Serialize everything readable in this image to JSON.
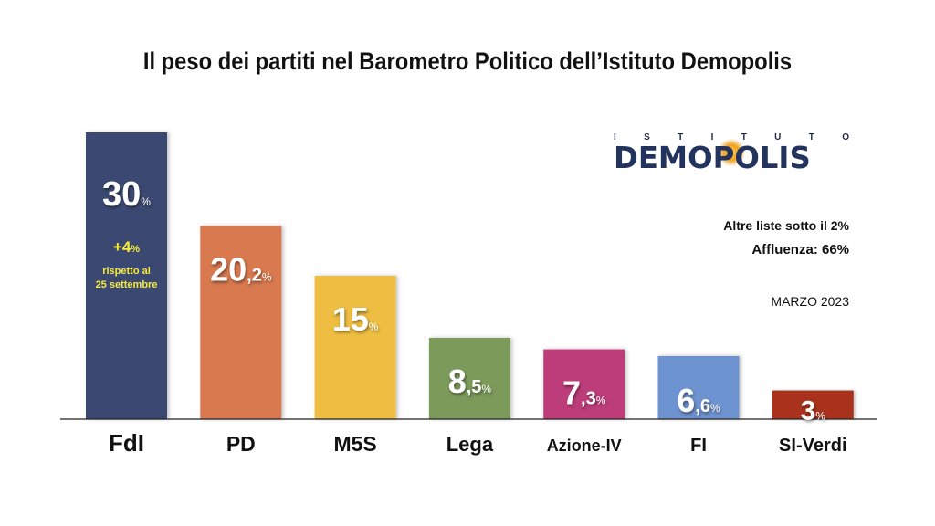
{
  "title": "Il peso dei partiti nel Barometro Politico dell’Istituto Demopolis",
  "logo": {
    "tagline": [
      "I",
      "S",
      "T",
      "I",
      "T",
      "U",
      "T",
      "O"
    ],
    "wordmark": "DEMOPOLIS"
  },
  "notes": {
    "other_lists": "Altre liste sotto il 2%",
    "turnout": "Affluenza: 66%",
    "date": "MARZO 2023"
  },
  "colors": {
    "FdI": "#3a4a72",
    "PD": "#d9794f",
    "M5S": "#eebe42",
    "Lega": "#7b9a5a",
    "Azione-IV": "#bd3d7a",
    "FI": "#6e93d1",
    "SI-Verdi": "#a8321f",
    "annotation": "#f7ea3a"
  },
  "chart_data": {
    "type": "bar",
    "title": "Il peso dei partiti nel Barometro Politico dell’Istituto Demopolis",
    "categories": [
      "FdI",
      "PD",
      "M5S",
      "Lega",
      "Azione-IV",
      "FI",
      "SI-Verdi"
    ],
    "values": [
      30,
      20.2,
      15,
      8.5,
      7.3,
      6.6,
      3
    ],
    "value_labels": [
      {
        "int": "30",
        "dec": "",
        "unit": "%"
      },
      {
        "int": "20",
        "dec": ",2",
        "unit": "%"
      },
      {
        "int": "15",
        "dec": "",
        "unit": "%"
      },
      {
        "int": "8",
        "dec": ",5",
        "unit": "%"
      },
      {
        "int": "7",
        "dec": ",3",
        "unit": "%"
      },
      {
        "int": "6",
        "dec": ",6",
        "unit": "%"
      },
      {
        "int": "3",
        "dec": "",
        "unit": "%"
      }
    ],
    "annotation": {
      "category": "FdI",
      "change": "+4",
      "change_unit": "%",
      "line1": "rispetto al",
      "line2": "25 settembre"
    },
    "xlabel": "",
    "ylabel": "",
    "ylim": [
      0,
      30
    ],
    "grid": false,
    "legend": "none"
  }
}
